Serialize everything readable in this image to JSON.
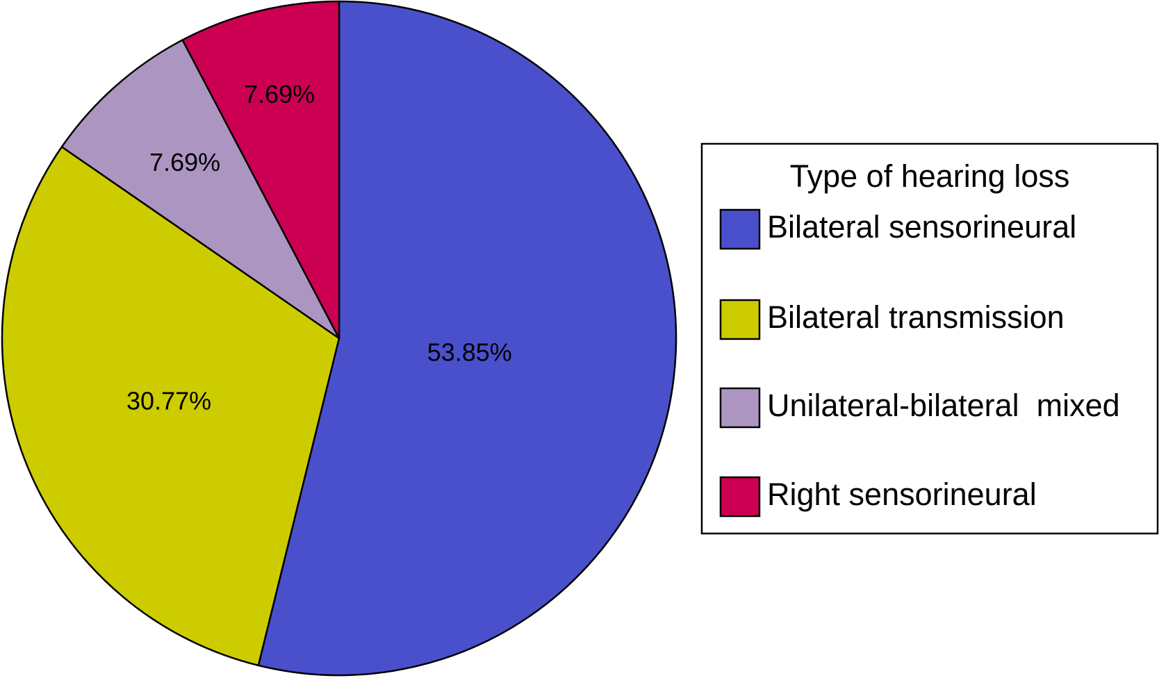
{
  "chart_data": {
    "type": "pie",
    "categories": [
      "Bilateral sensorineural",
      "Bilateral transmission",
      "Unilateral-bilateral  mixed",
      "Right sensorineural"
    ],
    "values": [
      53.85,
      30.77,
      7.69,
      7.69
    ],
    "value_labels": [
      "53.85%",
      "30.77%",
      "7.69%",
      "7.69%"
    ],
    "colors": [
      "#4a50cc",
      "#cccc00",
      "#ad95c1",
      "#cc0052"
    ],
    "legend_title": "Type of hearing loss",
    "legend": "right"
  }
}
